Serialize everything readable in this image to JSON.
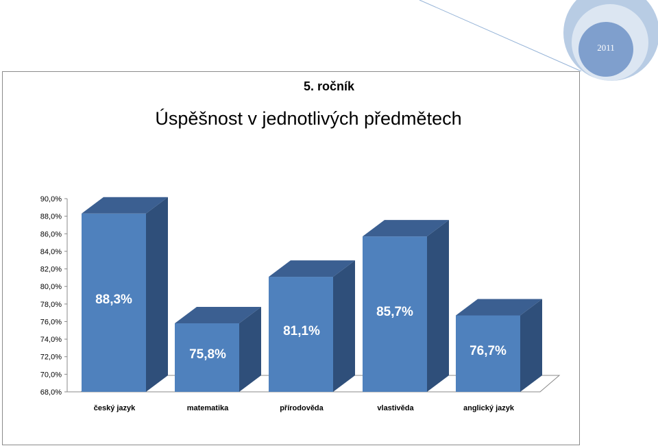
{
  "year_badge": "2011",
  "grade_label": "5. ročník",
  "chart_data": {
    "type": "bar",
    "title": "Úspěšnost v jednotlivých předmětech",
    "categories": [
      "český jazyk",
      "matematika",
      "přírodověda",
      "vlastivěda",
      "anglický jazyk"
    ],
    "values": [
      88.3,
      75.8,
      81.1,
      85.7,
      76.7
    ],
    "value_labels": [
      "88,3%",
      "75,8%",
      "81,1%",
      "85,7%",
      "76,7%"
    ],
    "yticks": [
      "68,0%",
      "70,0%",
      "72,0%",
      "74,0%",
      "76,0%",
      "78,0%",
      "80,0%",
      "82,0%",
      "84,0%",
      "86,0%",
      "88,0%",
      "90,0%"
    ],
    "ylim": [
      68,
      90
    ],
    "grid": false,
    "bar_style": "3d",
    "colors": {
      "bar_front": "#4f81bd",
      "bar_side": "#2f4f7a",
      "bar_top": "#3b5f91",
      "axis": "#888888"
    }
  }
}
